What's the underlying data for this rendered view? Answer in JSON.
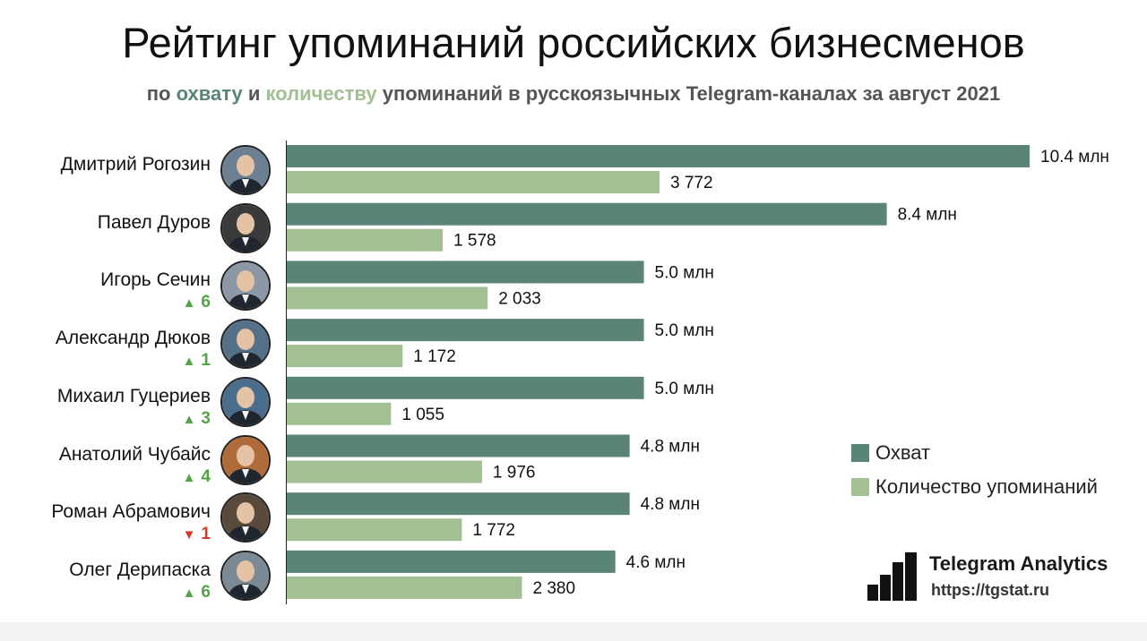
{
  "title": "Рейтинг упоминаний российских бизнесменов",
  "subtitle": {
    "part1": "по",
    "reach_word": "охвату",
    "part2": "и",
    "count_word": "количеству",
    "part3": "упоминаний в русскоязычных Telegram-каналах за август 2021"
  },
  "colors": {
    "reach": "#5b8478",
    "count": "#a3bf94",
    "up": "#54a447",
    "down": "#d23b2e"
  },
  "legend": {
    "reach_label": "Охват",
    "count_label": "Количество упоминаний"
  },
  "brand": {
    "name": "Telegram Analytics",
    "url": "https://tgstat.ru"
  },
  "people": [
    {
      "name": "Дмитрий Рогозин",
      "rank_change": null,
      "rank_dir": null,
      "avatar": "portrait-photo"
    },
    {
      "name": "Павел Дуров",
      "rank_change": null,
      "rank_dir": null,
      "avatar": "portrait-photo"
    },
    {
      "name": "Игорь Сечин",
      "rank_change": "6",
      "rank_dir": "up",
      "avatar": "portrait-photo"
    },
    {
      "name": "Александр Дюков",
      "rank_change": "1",
      "rank_dir": "up",
      "avatar": "portrait-photo"
    },
    {
      "name": "Михаил Гуцериев",
      "rank_change": "3",
      "rank_dir": "up",
      "avatar": "portrait-photo"
    },
    {
      "name": "Анатолий Чубайс",
      "rank_change": "4",
      "rank_dir": "up",
      "avatar": "portrait-photo"
    },
    {
      "name": "Роман Абрамович",
      "rank_change": "1",
      "rank_dir": "down",
      "avatar": "portrait-photo"
    },
    {
      "name": "Олег Дерипаска",
      "rank_change": "6",
      "rank_dir": "up",
      "avatar": "portrait-photo"
    }
  ],
  "chart_data": {
    "type": "bar",
    "orientation": "horizontal",
    "categories": [
      "Дмитрий Рогозин",
      "Павел Дуров",
      "Игорь Сечин",
      "Александр Дюков",
      "Михаил Гуцериев",
      "Анатолий Чубайс",
      "Роман Абрамович",
      "Олег Дерипаска"
    ],
    "series": [
      {
        "name": "Охват",
        "values": [
          10.4,
          8.4,
          5.0,
          5.0,
          5.0,
          4.8,
          4.8,
          4.6
        ],
        "labels": [
          "10.4 млн",
          "8.4 млн",
          "5.0 млн",
          "5.0 млн",
          "5.0 млн",
          "4.8 млн",
          "4.8 млн",
          "4.6 млн"
        ],
        "color": "#5b8478"
      },
      {
        "name": "Количество упоминаний",
        "values": [
          3772,
          1578,
          2033,
          1172,
          1055,
          1976,
          1772,
          2380
        ],
        "labels": [
          "3 772",
          "1 578",
          "2 033",
          "1 172",
          "1 055",
          "1 976",
          "1 772",
          "2 380"
        ],
        "color": "#a3bf94"
      }
    ],
    "legend_position": "right",
    "grid": false
  }
}
